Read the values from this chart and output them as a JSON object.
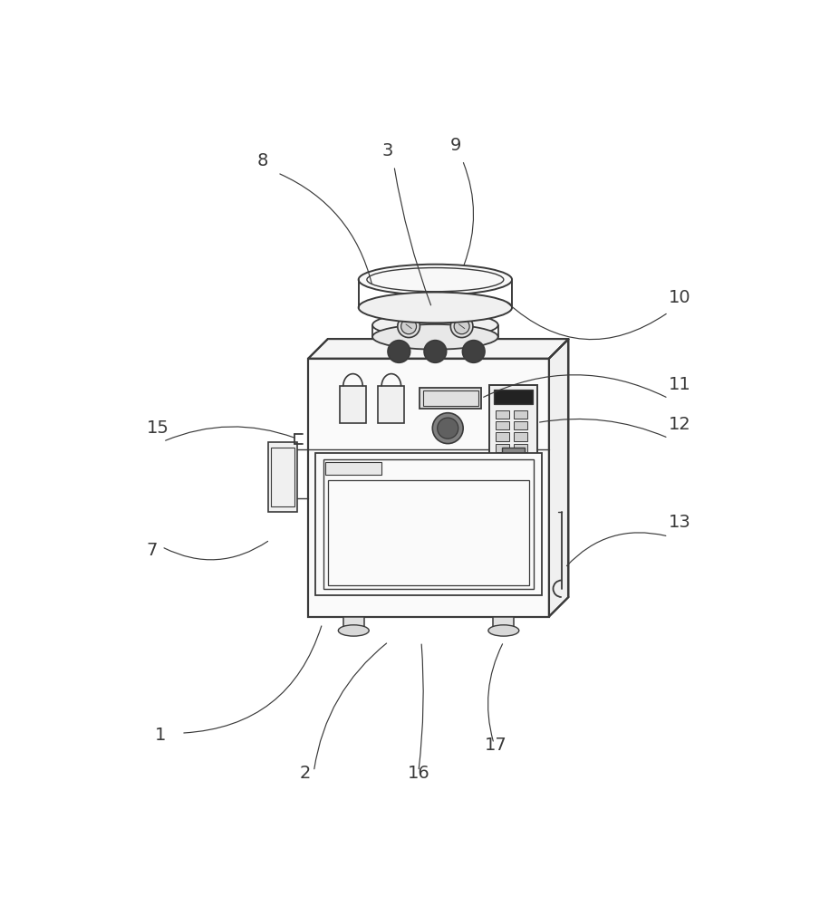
{
  "bg_color": "#ffffff",
  "line_color": "#3a3a3a",
  "lw_main": 1.4,
  "lw_thin": 0.9,
  "fig_width": 9.05,
  "fig_height": 10.0
}
